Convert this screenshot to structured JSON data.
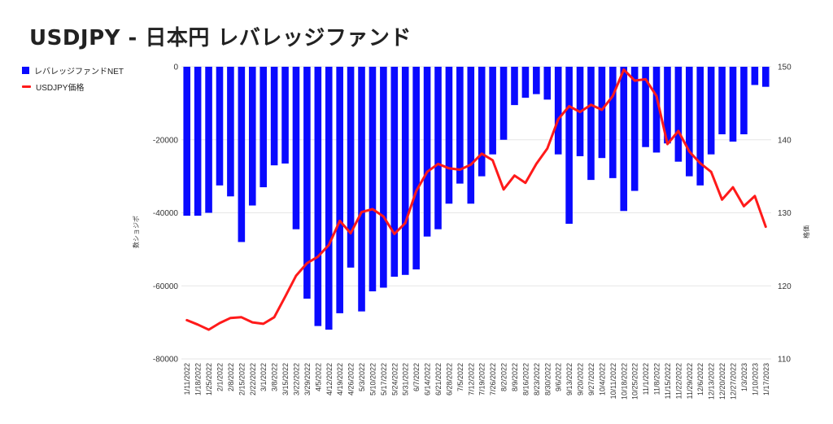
{
  "title": "USDJPY - 日本円 レバレッジファンド",
  "colors": {
    "bar": "#0a0aff",
    "line": "#ff1a1a",
    "grid": "#e6e6e6"
  },
  "legend": [
    {
      "label": "レバレッジファンドNET",
      "kind": "box",
      "color": "#0a0aff"
    },
    {
      "label": "USDJPY価格",
      "kind": "line",
      "color": "#ff1a1a"
    }
  ],
  "chart_data": {
    "type": "bar",
    "x_tick_labels": [
      "1/11/2022",
      "1/18/2022",
      "1/25/2022",
      "2/1/2022",
      "2/8/2022",
      "2/15/2022",
      "2/22/2022",
      "3/1/2022",
      "3/8/2022",
      "3/15/2022",
      "3/22/2022",
      "3/29/2022",
      "4/5/2022",
      "4/12/2022",
      "4/19/2022",
      "4/26/2022",
      "5/3/2022",
      "5/10/2022",
      "5/17/2022",
      "5/24/2022",
      "5/31/2022",
      "6/7/2022",
      "6/14/2022",
      "6/21/2022",
      "6/28/2022",
      "7/5/2022",
      "7/12/2022",
      "7/19/2022",
      "7/26/2022",
      "8/2/2022",
      "8/9/2022",
      "8/16/2022",
      "8/23/2022",
      "8/30/2022",
      "9/6/2022",
      "9/13/2022",
      "9/20/2022",
      "9/27/2022",
      "10/4/2022",
      "10/11/2022",
      "10/18/2022",
      "10/25/2022",
      "11/1/2022",
      "11/8/2022",
      "11/15/2022",
      "11/22/2022",
      "11/29/2022",
      "12/6/2022",
      "12/13/2022",
      "12/20/2022",
      "12/27/2022",
      "1/3/2023",
      "1/10/2023",
      "1/17/2023"
    ],
    "series": [
      {
        "name": "レバレッジファンドNET",
        "axis": "left",
        "type": "bar",
        "values": [
          -40800,
          -40800,
          -40000,
          -32500,
          -35500,
          -48000,
          -38000,
          -33000,
          -27000,
          -26500,
          -44500,
          -63500,
          -71000,
          -72000,
          -67500,
          -55000,
          -67000,
          -61500,
          -60500,
          -57500,
          -57000,
          -55500,
          -46500,
          -44500,
          -37500,
          -32000,
          -37500,
          -30000,
          -24000,
          -20000,
          -10500,
          -8500,
          -7500,
          -9000,
          -24000,
          -43000,
          -24500,
          -31000,
          -25000,
          -30500,
          -39500,
          -34000,
          -22000,
          -23500,
          -21000,
          -26000,
          -30000,
          -32500,
          -24000,
          -18500,
          -20500,
          -18500,
          -5000,
          -5500
        ]
      },
      {
        "name": "USDJPY価格",
        "axis": "right",
        "type": "line",
        "values": [
          115.3,
          114.7,
          114.0,
          114.9,
          115.6,
          115.7,
          115.0,
          114.8,
          115.7,
          118.5,
          121.4,
          123.1,
          124.0,
          125.6,
          128.9,
          127.2,
          130.1,
          130.5,
          129.5,
          127.1,
          128.6,
          133.0,
          135.6,
          136.7,
          136.1,
          135.9,
          136.6,
          138.1,
          137.2,
          133.2,
          135.1,
          134.1,
          136.7,
          138.8,
          142.8,
          144.6,
          143.8,
          144.8,
          144.1,
          146.0,
          149.6,
          148.1,
          148.3,
          146.0,
          139.4,
          141.2,
          138.4,
          136.8,
          135.6,
          131.8,
          133.5,
          130.9,
          132.3,
          128.1
        ]
      }
    ],
    "y_left": {
      "label": "数ショジポ",
      "min": -80000,
      "max": 0,
      "ticks": [
        0,
        -20000,
        -40000,
        -60000,
        -80000
      ],
      "tick_labels": [
        "0",
        "-20000",
        "-40000",
        "-60000",
        "-80000"
      ]
    },
    "y_right": {
      "label": "格価",
      "min": 110,
      "max": 150,
      "ticks": [
        150,
        140,
        130,
        120,
        110
      ],
      "tick_labels": [
        "150",
        "140",
        "130",
        "120",
        "110"
      ]
    },
    "grid": true,
    "legend_position": "top-left"
  }
}
